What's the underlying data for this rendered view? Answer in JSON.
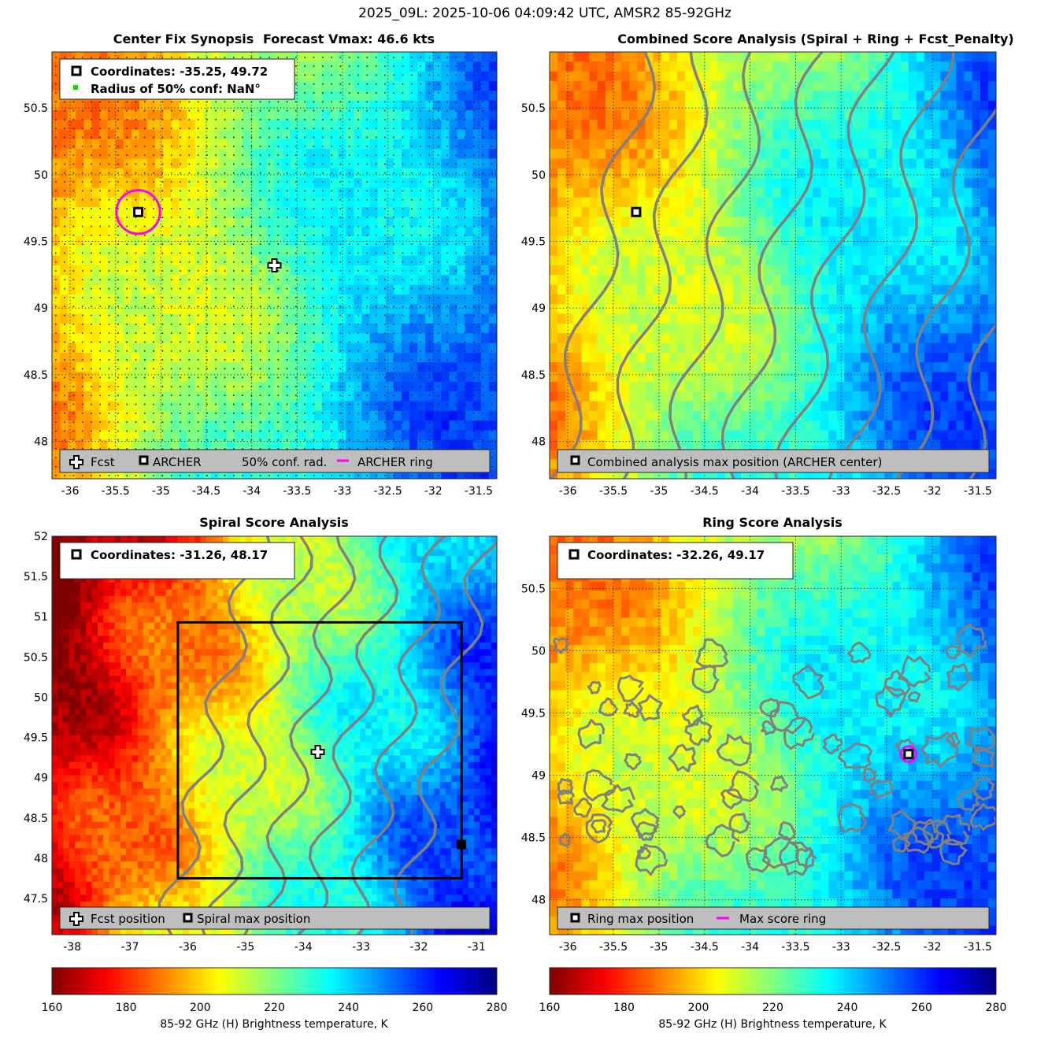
{
  "figure": {
    "title": "2025_09L: 2025-10-06 04:09:42 UTC, AMSR2 85-92GHz"
  },
  "colors": {
    "jet_colormap": [
      "#7f0000",
      "#ff0000",
      "#ff8000",
      "#ffff00",
      "#80ff80",
      "#00ffff",
      "#0080ff",
      "#0000ff",
      "#00007f"
    ],
    "archer_ring": "#ff00ff",
    "contour": "#808080",
    "legend_bg": "#bebebe"
  },
  "panels": [
    {
      "id": "center_fix",
      "title_left": "Center Fix Synopsis",
      "title_right": "Forecast Vmax: 46.6 kts",
      "info_lines": [
        "Coordinates: -35.25, 49.72",
        "Radius of 50% conf: NaN°"
      ],
      "legend": [
        {
          "symbol": "cross",
          "label": "Fcst"
        },
        {
          "symbol": "square",
          "label": "ARCHER"
        },
        {
          "symbol": "none",
          "label": "50% conf. rad."
        },
        {
          "symbol": "line",
          "label": "ARCHER ring"
        }
      ],
      "xlim": [
        -36.2,
        -31.3
      ],
      "ylim": [
        47.72,
        50.92
      ],
      "xticks": [
        "-36",
        "-35.5",
        "-35",
        "-34.5",
        "-34",
        "-33.5",
        "-33",
        "-32.5",
        "-32",
        "-31.5"
      ],
      "yticks": [
        "48",
        "48.5",
        "49",
        "49.5",
        "50",
        "50.5"
      ]
    },
    {
      "id": "combined",
      "title_left": "Combined Score Analysis (Spiral + Ring + Fcst_Penalty)",
      "title_right": "",
      "info_lines": [],
      "legend": [
        {
          "symbol": "square",
          "label": "Combined analysis max position (ARCHER center)"
        }
      ],
      "xlim": [
        -36.2,
        -31.3
      ],
      "ylim": [
        47.72,
        50.92
      ],
      "xticks": [
        "-36",
        "-35.5",
        "-35",
        "-34.5",
        "-34",
        "-33.5",
        "-33",
        "-32.5",
        "-32",
        "-31.5"
      ],
      "yticks": [
        "48",
        "48.5",
        "49",
        "49.5",
        "50",
        "50.5"
      ]
    },
    {
      "id": "spiral",
      "title_left": "Spiral Score Analysis",
      "title_right": "",
      "info_lines": [
        "Coordinates: -31.26, 48.17"
      ],
      "legend": [
        {
          "symbol": "cross",
          "label": "Fcst position"
        },
        {
          "symbol": "square",
          "label": "Spiral max position"
        }
      ],
      "xlim": [
        -38.35,
        -30.65
      ],
      "ylim": [
        47.05,
        52.0
      ],
      "xticks": [
        "-38",
        "-37",
        "-36",
        "-35",
        "-34",
        "-33",
        "-32",
        "-31"
      ],
      "yticks": [
        "47.5",
        "48",
        "48.5",
        "49",
        "49.5",
        "50",
        "50.5",
        "51",
        "51.5",
        "52"
      ]
    },
    {
      "id": "ring",
      "title_left": "Ring Score Analysis",
      "title_right": "",
      "info_lines": [
        "Coordinates: -32.26, 49.17"
      ],
      "legend": [
        {
          "symbol": "square",
          "label": "Ring max position"
        },
        {
          "symbol": "line",
          "label": "Max score ring"
        }
      ],
      "xlim": [
        -36.2,
        -31.3
      ],
      "ylim": [
        47.72,
        50.92
      ],
      "xticks": [
        "-36",
        "-35.5",
        "-35",
        "-34.5",
        "-34",
        "-33.5",
        "-33",
        "-32.5",
        "-32",
        "-31.5"
      ],
      "yticks": [
        "48",
        "48.5",
        "49",
        "49.5",
        "50",
        "50.5"
      ]
    }
  ],
  "colorbars": [
    {
      "ticks": [
        "160",
        "180",
        "200",
        "220",
        "240",
        "260",
        "280"
      ],
      "label": "85-92 GHz (H) Brightness temperature, K"
    },
    {
      "ticks": [
        "160",
        "180",
        "200",
        "220",
        "240",
        "260",
        "280"
      ],
      "label": "85-92 GHz (H) Brightness temperature, K"
    }
  ],
  "chart_data": [
    {
      "type": "heatmap",
      "title": "Center Fix Synopsis",
      "subtitle": "Forecast Vmax: 46.6 kts",
      "xlim": [
        -36.2,
        -31.3
      ],
      "ylim": [
        47.72,
        50.92
      ],
      "color_range": [
        160,
        280
      ],
      "field_description_units": "K",
      "points": [
        {
          "name": "ARCHER",
          "x": -35.25,
          "y": 49.72
        },
        {
          "name": "Fcst",
          "x": -33.75,
          "y": 49.32
        }
      ],
      "ring": {
        "x": -35.25,
        "y": 49.72,
        "radius_deg": 0.24
      },
      "grid": true
    },
    {
      "type": "heatmap",
      "title": "Combined Score Analysis (Spiral + Ring + Fcst_Penalty)",
      "xlim": [
        -36.2,
        -31.3
      ],
      "ylim": [
        47.72,
        50.92
      ],
      "color_range": [
        160,
        280
      ],
      "points": [
        {
          "name": "Combined analysis max position (ARCHER center)",
          "x": -35.25,
          "y": 49.72
        }
      ],
      "contours": true,
      "grid": true
    },
    {
      "type": "heatmap",
      "title": "Spiral Score Analysis",
      "xlim": [
        -38.35,
        -30.65
      ],
      "ylim": [
        47.05,
        52.0
      ],
      "color_range": [
        160,
        280
      ],
      "points": [
        {
          "name": "Fcst position",
          "x": -33.75,
          "y": 49.32
        },
        {
          "name": "Spiral max position",
          "x": -31.26,
          "y": 48.17
        }
      ],
      "box": {
        "x0": -36.17,
        "x1": -31.26,
        "y0": 47.75,
        "y1": 50.93
      },
      "contours": true,
      "grid": false
    },
    {
      "type": "heatmap",
      "title": "Ring Score Analysis",
      "xlim": [
        -36.2,
        -31.3
      ],
      "ylim": [
        47.72,
        50.92
      ],
      "color_range": [
        160,
        280
      ],
      "points": [
        {
          "name": "Ring max position",
          "x": -32.26,
          "y": 49.17
        }
      ],
      "ring": {
        "x": -32.26,
        "y": 49.17,
        "radius_deg": 0.05
      },
      "contours": true,
      "grid": true
    }
  ]
}
